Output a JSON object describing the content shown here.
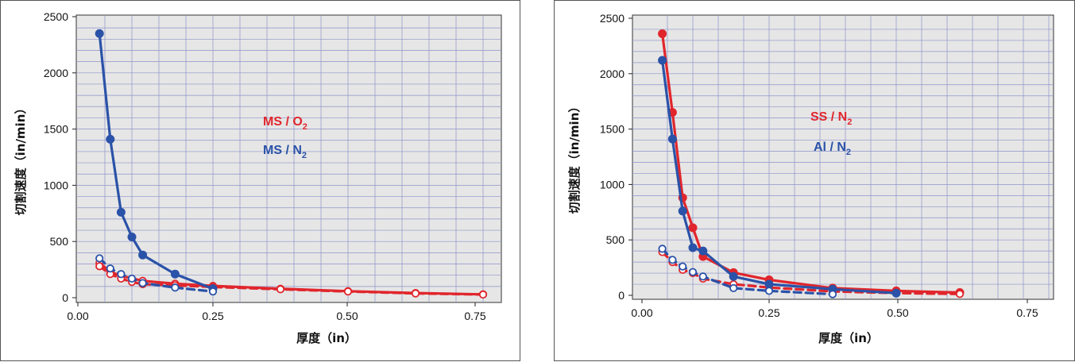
{
  "chart_data": [
    {
      "type": "line",
      "xlabel": "厚度（in）",
      "ylabel": "切割速度（in/min）",
      "xlim": [
        0,
        0.8
      ],
      "ylim": [
        0,
        2500
      ],
      "xticks": [
        "0.00",
        "0.25",
        "0.50",
        "0.75"
      ],
      "yticks": [
        "0",
        "500",
        "1000",
        "1500",
        "2000",
        "2500"
      ],
      "grid": true,
      "legend_position": "center",
      "labels": [
        {
          "id": "ms-o2",
          "main": "MS / O",
          "sub": "2",
          "color": "#e0262c"
        },
        {
          "id": "ms-n2",
          "main": "MS / N",
          "sub": "2",
          "color": "#2a52a8"
        }
      ],
      "series": [
        {
          "id": "ms-o2-solid",
          "label_ref": "ms-o2",
          "color": "#e0262c",
          "dash": false,
          "marker": "open",
          "x": [
            0.04,
            0.06,
            0.08,
            0.12,
            0.18,
            0.25,
            0.375,
            0.5,
            0.625,
            0.75
          ],
          "y": [
            310,
            230,
            195,
            150,
            125,
            105,
            80,
            58,
            42,
            30
          ]
        },
        {
          "id": "ms-o2-dashed",
          "label_ref": "ms-o2",
          "color": "#e0262c",
          "dash": true,
          "marker": "open",
          "x": [
            0.04,
            0.06,
            0.08,
            0.1,
            0.12,
            0.18,
            0.25,
            0.375,
            0.5,
            0.625,
            0.75
          ],
          "y": [
            280,
            210,
            170,
            140,
            120,
            110,
            95,
            75,
            55,
            38,
            28
          ]
        },
        {
          "id": "ms-n2-solid",
          "label_ref": "ms-n2",
          "color": "#2a52a8",
          "dash": false,
          "marker": "filled",
          "x": [
            0.04,
            0.06,
            0.08,
            0.1,
            0.12,
            0.18,
            0.25
          ],
          "y": [
            2350,
            1410,
            760,
            540,
            380,
            210,
            80
          ]
        },
        {
          "id": "ms-n2-dashed",
          "label_ref": "ms-n2",
          "color": "#2a52a8",
          "dash": true,
          "marker": "open",
          "x": [
            0.04,
            0.06,
            0.08,
            0.1,
            0.12,
            0.18,
            0.25
          ],
          "y": [
            350,
            260,
            210,
            170,
            130,
            90,
            55
          ]
        }
      ]
    },
    {
      "type": "line",
      "xlabel": "厚度（in）",
      "ylabel": "切割速度（in/min）",
      "xlim": [
        0,
        0.8
      ],
      "ylim": [
        0,
        2500
      ],
      "xticks": [
        "0.00",
        "0.25",
        "0.50",
        "0.75"
      ],
      "yticks": [
        "0",
        "500",
        "1000",
        "1500",
        "2000",
        "2500"
      ],
      "grid": true,
      "legend_position": "center",
      "labels": [
        {
          "id": "ss-n2",
          "main": "SS / N",
          "sub": "2",
          "color": "#e0262c"
        },
        {
          "id": "al-n2",
          "main": "Al / N",
          "sub": "2",
          "color": "#2a52a8"
        }
      ],
      "series": [
        {
          "id": "ss-n2-solid",
          "label_ref": "ss-n2",
          "color": "#e0262c",
          "dash": false,
          "marker": "filled",
          "x": [
            0.04,
            0.06,
            0.08,
            0.1,
            0.12,
            0.18,
            0.25,
            0.375,
            0.5,
            0.625
          ],
          "y": [
            2360,
            1650,
            880,
            610,
            350,
            205,
            140,
            65,
            40,
            25
          ]
        },
        {
          "id": "ss-n2-dashed",
          "label_ref": "ss-n2",
          "color": "#e0262c",
          "dash": true,
          "marker": "open",
          "x": [
            0.04,
            0.06,
            0.08,
            0.1,
            0.12,
            0.18,
            0.25,
            0.375,
            0.5,
            0.625
          ],
          "y": [
            390,
            300,
            230,
            200,
            150,
            100,
            70,
            35,
            20,
            12
          ]
        },
        {
          "id": "al-n2-solid",
          "label_ref": "al-n2",
          "color": "#2a52a8",
          "dash": false,
          "marker": "filled",
          "x": [
            0.04,
            0.06,
            0.08,
            0.1,
            0.12,
            0.18,
            0.25,
            0.375,
            0.5
          ],
          "y": [
            2120,
            1410,
            760,
            430,
            400,
            170,
            100,
            55,
            20
          ]
        },
        {
          "id": "al-n2-dashed",
          "label_ref": "al-n2",
          "color": "#2a52a8",
          "dash": true,
          "marker": "open",
          "x": [
            0.04,
            0.06,
            0.08,
            0.1,
            0.12,
            0.18,
            0.25,
            0.375
          ],
          "y": [
            420,
            320,
            260,
            210,
            170,
            65,
            40,
            10
          ]
        }
      ]
    }
  ]
}
